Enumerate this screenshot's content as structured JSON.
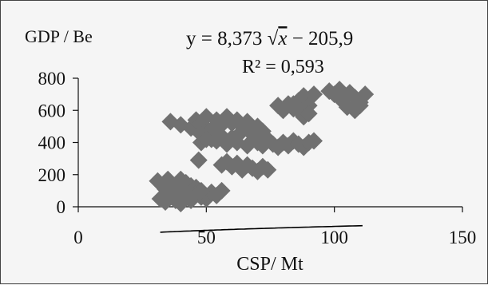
{
  "chart_data": {
    "type": "scatter",
    "ylabel": "GDP / Be",
    "xlabel": "CSP/ Mt",
    "equation_prefix": "y = 8,373 ",
    "equation_x": "x",
    "equation_suffix": " − 205,9",
    "r2_label": "R² = 0,593",
    "xlim": [
      0,
      150
    ],
    "ylim": [
      0,
      800
    ],
    "xticks": [
      0,
      50,
      100,
      150
    ],
    "yticks": [
      0,
      200,
      400,
      600,
      800
    ],
    "grid": false,
    "marker_color": "#707070",
    "trend_color": "#000000",
    "trendline": {
      "type": "sqrt",
      "a": 8.373,
      "b": -205.9,
      "x_range": [
        32,
        111
      ]
    },
    "points": [
      [
        31,
        160
      ],
      [
        33,
        130
      ],
      [
        35,
        170
      ],
      [
        36,
        150
      ],
      [
        38,
        120
      ],
      [
        40,
        170
      ],
      [
        42,
        150
      ],
      [
        44,
        130
      ],
      [
        46,
        120
      ],
      [
        34,
        110
      ],
      [
        37,
        100
      ],
      [
        39,
        90
      ],
      [
        41,
        110
      ],
      [
        32,
        50
      ],
      [
        34,
        30
      ],
      [
        36,
        60
      ],
      [
        38,
        40
      ],
      [
        40,
        20
      ],
      [
        42,
        60
      ],
      [
        44,
        40
      ],
      [
        46,
        80
      ],
      [
        48,
        60
      ],
      [
        50,
        50
      ],
      [
        52,
        90
      ],
      [
        54,
        70
      ],
      [
        56,
        100
      ],
      [
        44,
        70
      ],
      [
        48,
        100
      ],
      [
        47,
        290
      ],
      [
        36,
        530
      ],
      [
        40,
        510
      ],
      [
        44,
        490
      ],
      [
        46,
        540
      ],
      [
        48,
        520
      ],
      [
        50,
        560
      ],
      [
        52,
        480
      ],
      [
        54,
        540
      ],
      [
        56,
        510
      ],
      [
        58,
        560
      ],
      [
        60,
        520
      ],
      [
        62,
        540
      ],
      [
        64,
        500
      ],
      [
        66,
        530
      ],
      [
        68,
        480
      ],
      [
        70,
        500
      ],
      [
        72,
        470
      ],
      [
        48,
        450
      ],
      [
        52,
        420
      ],
      [
        56,
        440
      ],
      [
        60,
        430
      ],
      [
        64,
        470
      ],
      [
        68,
        450
      ],
      [
        48,
        400
      ],
      [
        50,
        420
      ],
      [
        54,
        410
      ],
      [
        58,
        390
      ],
      [
        62,
        400
      ],
      [
        66,
        380
      ],
      [
        70,
        400
      ],
      [
        72,
        380
      ],
      [
        74,
        420
      ],
      [
        56,
        260
      ],
      [
        58,
        280
      ],
      [
        60,
        250
      ],
      [
        62,
        270
      ],
      [
        64,
        230
      ],
      [
        66,
        260
      ],
      [
        68,
        240
      ],
      [
        70,
        220
      ],
      [
        72,
        250
      ],
      [
        74,
        230
      ],
      [
        76,
        390
      ],
      [
        78,
        370
      ],
      [
        80,
        400
      ],
      [
        82,
        380
      ],
      [
        84,
        410
      ],
      [
        86,
        390
      ],
      [
        88,
        370
      ],
      [
        90,
        400
      ],
      [
        92,
        410
      ],
      [
        78,
        630
      ],
      [
        80,
        600
      ],
      [
        82,
        640
      ],
      [
        84,
        610
      ],
      [
        86,
        660
      ],
      [
        88,
        690
      ],
      [
        90,
        630
      ],
      [
        92,
        700
      ],
      [
        86,
        600
      ],
      [
        88,
        560
      ],
      [
        90,
        580
      ],
      [
        84,
        640
      ],
      [
        100,
        700
      ],
      [
        102,
        730
      ],
      [
        104,
        690
      ],
      [
        106,
        710
      ],
      [
        108,
        680
      ],
      [
        110,
        650
      ],
      [
        105,
        620
      ],
      [
        108,
        600
      ],
      [
        110,
        630
      ],
      [
        103,
        660
      ],
      [
        112,
        700
      ],
      [
        98,
        720
      ]
    ]
  }
}
